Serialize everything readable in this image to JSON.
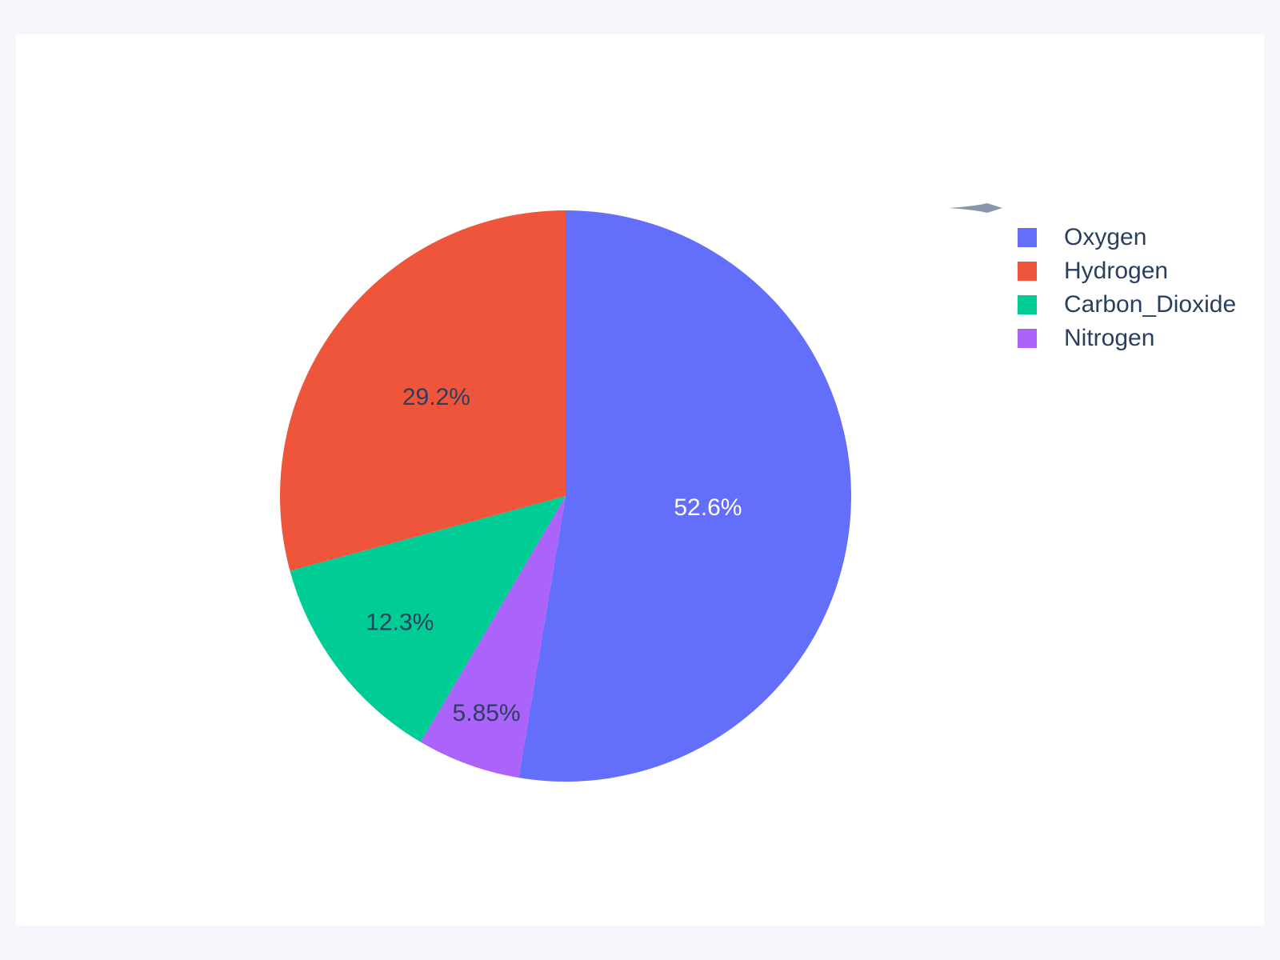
{
  "window": {
    "background_color": "#F4F6FC",
    "card_background_color": "#FFFFFF"
  },
  "decorations": {
    "dart_icon_color": "#8897AB"
  },
  "chart_data": {
    "type": "pie",
    "title": "",
    "categories": [
      "Oxygen",
      "Hydrogen",
      "Carbon_Dioxide",
      "Nitrogen"
    ],
    "values_percent": [
      52.6,
      29.2,
      12.3,
      5.85
    ],
    "slices": [
      {
        "label": "Oxygen",
        "percent": 52.6,
        "percent_text": "52.6%",
        "color": "#636EFA",
        "text_color": "#FFFFFF",
        "label_r_frac": 0.5
      },
      {
        "label": "Hydrogen",
        "percent": 29.2,
        "percent_text": "29.2%",
        "color": "#EF553B",
        "text_color": "#2A3F5F",
        "label_r_frac": 0.57
      },
      {
        "label": "Carbon_Dioxide",
        "percent": 12.3,
        "percent_text": "12.3%",
        "color": "#00CC96",
        "text_color": "#2A3F5F",
        "label_r_frac": 0.73
      },
      {
        "label": "Nitrogen",
        "percent": 5.85,
        "percent_text": "5.85%",
        "color": "#AB63FA",
        "text_color": "#2A3F5F",
        "label_r_frac": 0.81
      }
    ],
    "layout": {
      "start_angle": "12-o-clock",
      "largest_slice_direction": "clockwise",
      "remaining_slices_direction": "counterclockwise",
      "legend_position": "top-right",
      "grid": false,
      "labels_inside": true
    }
  }
}
